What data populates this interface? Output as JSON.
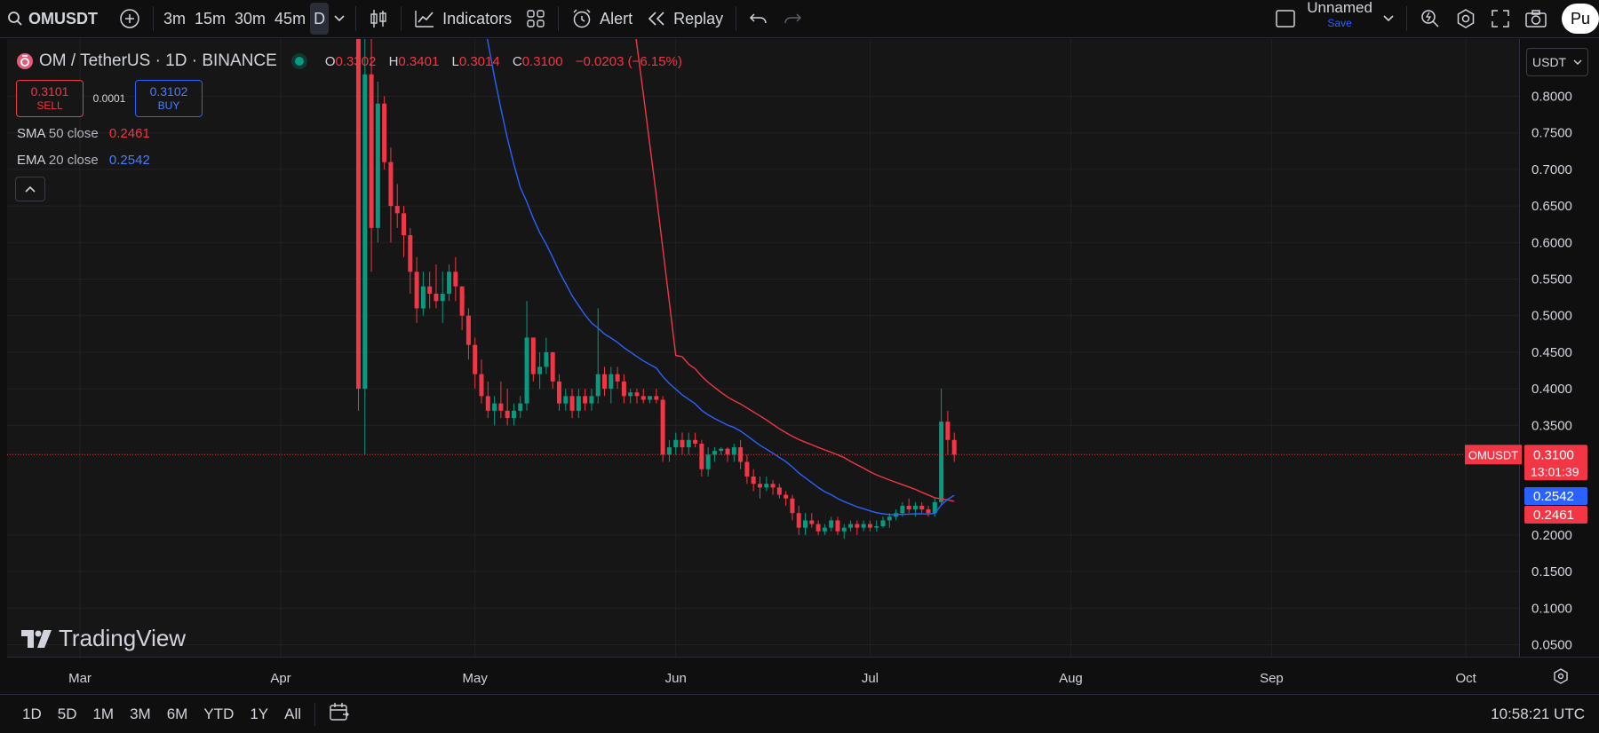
{
  "toolbar": {
    "symbol": "OMUSDT",
    "intervals": [
      "3m",
      "15m",
      "30m",
      "45m"
    ],
    "active_interval": "D",
    "indicators_label": "Indicators",
    "alert_label": "Alert",
    "replay_label": "Replay",
    "layout_name": "Unnamed",
    "save_label": "Save",
    "publish_label": "Pu"
  },
  "legend": {
    "title": "OM / TetherUS · 1D · BINANCE",
    "open_key": "O",
    "open": "0.3302",
    "high_key": "H",
    "high": "0.3401",
    "low_key": "L",
    "low": "0.3014",
    "close_key": "C",
    "close": "0.3100",
    "change": "−0.0203 (−6.15%)"
  },
  "trade": {
    "sell_price": "0.3101",
    "sell_label": "SELL",
    "spread": "0.0001",
    "buy_price": "0.3102",
    "buy_label": "BUY"
  },
  "indicators": [
    {
      "name": "SMA",
      "params": "50 close",
      "value": "0.2461",
      "color": "#f23645"
    },
    {
      "name": "EMA",
      "params": "20 close",
      "value": "0.2542",
      "color": "#2962ff"
    }
  ],
  "currency": "USDT",
  "watermark": "TradingView",
  "bottom": {
    "ranges": [
      "1D",
      "5D",
      "1M",
      "3M",
      "6M",
      "YTD",
      "1Y",
      "All"
    ],
    "clock": "10:58:21 UTC"
  },
  "colors": {
    "up": "#089981",
    "down": "#f23645",
    "sma": "#f23645",
    "ema": "#2962ff",
    "accent": "#2962ff"
  },
  "chart_data": {
    "type": "candlestick",
    "title": "OM / TetherUS · 1D · BINANCE",
    "x_ticks": [
      "Mar",
      "Apr",
      "May",
      "Jun",
      "Jul",
      "Aug",
      "Sep",
      "Oct"
    ],
    "y_ticks": [
      "0.8000",
      "0.7500",
      "0.7000",
      "0.6500",
      "0.6000",
      "0.5500",
      "0.5000",
      "0.4500",
      "0.4000",
      "0.3500",
      "0.2000",
      "0.1500",
      "0.1000",
      "0.0500"
    ],
    "ylim": [
      0.025,
      0.85
    ],
    "grid": true,
    "last_price_label": {
      "symbol": "OMUSDT",
      "price": "0.3100",
      "countdown": "13:01:39"
    },
    "series": [
      {
        "name": "OMUSDT",
        "type": "candlestick",
        "start_date": "2025-04-13",
        "ohlc": [
          [
            0.88,
            0.88,
            0.37,
            0.4
          ],
          [
            0.4,
            0.98,
            0.31,
            0.83
          ],
          [
            0.83,
            0.9,
            0.56,
            0.62
          ],
          [
            0.62,
            0.82,
            0.6,
            0.79
          ],
          [
            0.79,
            0.8,
            0.7,
            0.71
          ],
          [
            0.71,
            0.73,
            0.6,
            0.65
          ],
          [
            0.65,
            0.68,
            0.62,
            0.64
          ],
          [
            0.64,
            0.65,
            0.58,
            0.61
          ],
          [
            0.61,
            0.62,
            0.53,
            0.56
          ],
          [
            0.56,
            0.58,
            0.49,
            0.51
          ],
          [
            0.51,
            0.56,
            0.5,
            0.54
          ],
          [
            0.54,
            0.56,
            0.51,
            0.53
          ],
          [
            0.53,
            0.57,
            0.51,
            0.52
          ],
          [
            0.52,
            0.56,
            0.49,
            0.53
          ],
          [
            0.53,
            0.57,
            0.52,
            0.56
          ],
          [
            0.56,
            0.58,
            0.52,
            0.54
          ],
          [
            0.54,
            0.54,
            0.48,
            0.5
          ],
          [
            0.5,
            0.51,
            0.44,
            0.46
          ],
          [
            0.46,
            0.47,
            0.4,
            0.42
          ],
          [
            0.42,
            0.44,
            0.38,
            0.39
          ],
          [
            0.39,
            0.41,
            0.36,
            0.37
          ],
          [
            0.37,
            0.39,
            0.35,
            0.38
          ],
          [
            0.38,
            0.41,
            0.36,
            0.37
          ],
          [
            0.37,
            0.4,
            0.35,
            0.36
          ],
          [
            0.36,
            0.38,
            0.35,
            0.37
          ],
          [
            0.37,
            0.39,
            0.36,
            0.38
          ],
          [
            0.38,
            0.52,
            0.37,
            0.47
          ],
          [
            0.47,
            0.47,
            0.41,
            0.42
          ],
          [
            0.42,
            0.45,
            0.4,
            0.43
          ],
          [
            0.43,
            0.47,
            0.42,
            0.45
          ],
          [
            0.45,
            0.45,
            0.4,
            0.41
          ],
          [
            0.41,
            0.42,
            0.37,
            0.38
          ],
          [
            0.38,
            0.4,
            0.37,
            0.39
          ],
          [
            0.39,
            0.4,
            0.36,
            0.37
          ],
          [
            0.37,
            0.4,
            0.36,
            0.39
          ],
          [
            0.39,
            0.4,
            0.37,
            0.38
          ],
          [
            0.38,
            0.4,
            0.37,
            0.39
          ],
          [
            0.39,
            0.51,
            0.38,
            0.42
          ],
          [
            0.42,
            0.43,
            0.39,
            0.4
          ],
          [
            0.4,
            0.43,
            0.38,
            0.42
          ],
          [
            0.42,
            0.43,
            0.4,
            0.41
          ],
          [
            0.41,
            0.42,
            0.38,
            0.39
          ],
          [
            0.39,
            0.4,
            0.38,
            0.395
          ],
          [
            0.395,
            0.4,
            0.38,
            0.39
          ],
          [
            0.39,
            0.4,
            0.38,
            0.385
          ],
          [
            0.385,
            0.39,
            0.38,
            0.39
          ],
          [
            0.39,
            0.4,
            0.38,
            0.385
          ],
          [
            0.385,
            0.39,
            0.3,
            0.31
          ],
          [
            0.31,
            0.33,
            0.3,
            0.32
          ],
          [
            0.32,
            0.34,
            0.31,
            0.33
          ],
          [
            0.33,
            0.34,
            0.31,
            0.32
          ],
          [
            0.32,
            0.34,
            0.31,
            0.33
          ],
          [
            0.33,
            0.34,
            0.32,
            0.325
          ],
          [
            0.325,
            0.33,
            0.28,
            0.29
          ],
          [
            0.29,
            0.32,
            0.28,
            0.31
          ],
          [
            0.31,
            0.32,
            0.3,
            0.315
          ],
          [
            0.315,
            0.32,
            0.31,
            0.318
          ],
          [
            0.318,
            0.32,
            0.3,
            0.31
          ],
          [
            0.31,
            0.325,
            0.3,
            0.32
          ],
          [
            0.32,
            0.33,
            0.29,
            0.3
          ],
          [
            0.3,
            0.31,
            0.27,
            0.28
          ],
          [
            0.28,
            0.29,
            0.26,
            0.27
          ],
          [
            0.27,
            0.28,
            0.25,
            0.265
          ],
          [
            0.265,
            0.28,
            0.26,
            0.27
          ],
          [
            0.27,
            0.275,
            0.255,
            0.265
          ],
          [
            0.265,
            0.27,
            0.25,
            0.255
          ],
          [
            0.255,
            0.26,
            0.24,
            0.25
          ],
          [
            0.25,
            0.255,
            0.22,
            0.23
          ],
          [
            0.23,
            0.24,
            0.2,
            0.21
          ],
          [
            0.21,
            0.23,
            0.2,
            0.22
          ],
          [
            0.22,
            0.23,
            0.21,
            0.215
          ],
          [
            0.215,
            0.22,
            0.2,
            0.205
          ],
          [
            0.205,
            0.215,
            0.2,
            0.21
          ],
          [
            0.21,
            0.225,
            0.205,
            0.22
          ],
          [
            0.22,
            0.225,
            0.2,
            0.205
          ],
          [
            0.205,
            0.215,
            0.195,
            0.21
          ],
          [
            0.21,
            0.22,
            0.205,
            0.215
          ],
          [
            0.215,
            0.22,
            0.2,
            0.21
          ],
          [
            0.21,
            0.22,
            0.205,
            0.215
          ],
          [
            0.215,
            0.22,
            0.205,
            0.21
          ],
          [
            0.21,
            0.22,
            0.205,
            0.212
          ],
          [
            0.212,
            0.225,
            0.21,
            0.22
          ],
          [
            0.22,
            0.23,
            0.21,
            0.225
          ],
          [
            0.225,
            0.235,
            0.22,
            0.23
          ],
          [
            0.23,
            0.245,
            0.225,
            0.24
          ],
          [
            0.24,
            0.25,
            0.23,
            0.235
          ],
          [
            0.235,
            0.245,
            0.225,
            0.24
          ],
          [
            0.24,
            0.245,
            0.23,
            0.235
          ],
          [
            0.235,
            0.24,
            0.225,
            0.23
          ],
          [
            0.23,
            0.25,
            0.225,
            0.245
          ],
          [
            0.245,
            0.4,
            0.24,
            0.355
          ],
          [
            0.355,
            0.37,
            0.31,
            0.33
          ],
          [
            0.33,
            0.34,
            0.3,
            0.31
          ]
        ]
      },
      {
        "name": "SMA 50 close",
        "type": "line",
        "last_value": 0.2461
      },
      {
        "name": "EMA 20 close",
        "type": "line",
        "last_value": 0.2542
      }
    ]
  }
}
